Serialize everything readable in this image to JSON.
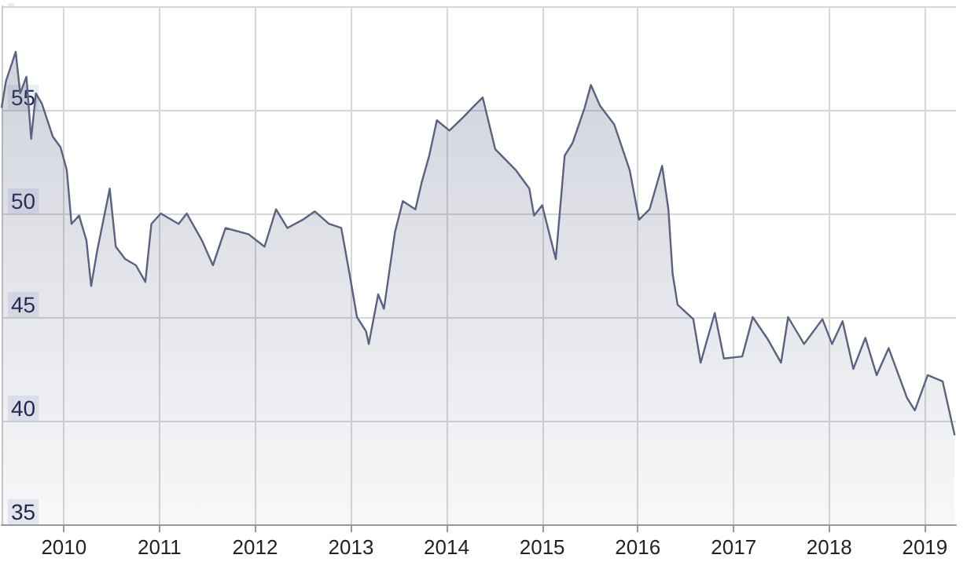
{
  "chart_data": {
    "type": "area",
    "x": [
      "2009-05-08",
      "2009-05-25",
      "2009-07-01",
      "2009-07-18",
      "2009-08-11",
      "2009-08-29",
      "2009-09-16",
      "2009-10-09",
      "2009-11-20",
      "2009-12-19",
      "2010-01-12",
      "2010-01-30",
      "2010-02-28",
      "2010-03-28",
      "2010-04-15",
      "2010-05-08",
      "2010-06-25",
      "2010-07-18",
      "2010-08-23",
      "2010-10-03",
      "2010-11-08",
      "2010-12-01",
      "2011-01-06",
      "2011-03-15",
      "2011-04-15",
      "2011-06-12",
      "2011-07-24",
      "2011-09-10",
      "2011-12-07",
      "2012-02-06",
      "2012-03-21",
      "2012-05-03",
      "2012-07-01",
      "2012-08-16",
      "2012-10-09",
      "2012-11-25",
      "2012-12-25",
      "2013-01-24",
      "2013-02-28",
      "2013-03-10",
      "2013-04-15",
      "2013-05-07",
      "2013-06-18",
      "2013-07-18",
      "2013-09-04",
      "2013-09-28",
      "2013-10-27",
      "2013-11-25",
      "2014-01-12",
      "2014-03-10",
      "2014-04-09",
      "2014-05-19",
      "2014-07-06",
      "2014-09-22",
      "2014-11-13",
      "2014-12-01",
      "2015-01-01",
      "2015-02-22",
      "2015-03-28",
      "2015-04-27",
      "2015-06-12",
      "2015-07-06",
      "2015-08-10",
      "2015-10-03",
      "2015-12-01",
      "2016-01-06",
      "2016-02-15",
      "2016-04-03",
      "2016-04-27",
      "2016-05-13",
      "2016-06-01",
      "2016-07-31",
      "2016-08-28",
      "2016-10-21",
      "2016-11-25",
      "2017-02-03",
      "2017-03-15",
      "2017-05-13",
      "2017-07-01",
      "2017-07-28",
      "2017-09-27",
      "2017-12-06",
      "2018-01-12",
      "2018-02-21",
      "2018-04-03",
      "2018-05-19",
      "2018-07-01",
      "2018-08-16",
      "2018-10-25",
      "2018-11-24",
      "2019-01-12",
      "2019-03-10",
      "2019-04-25"
    ],
    "series": [
      {
        "color": "#5a6282",
        "values": [
          55.1,
          56.4,
          57.8,
          55.8,
          56.6,
          53.6,
          55.8,
          55.3,
          53.7,
          53.2,
          52.1,
          49.5,
          49.9,
          48.7,
          46.5,
          48.2,
          51.2,
          48.4,
          47.8,
          47.5,
          46.7,
          49.5,
          50.0,
          49.5,
          50.0,
          48.7,
          47.5,
          49.3,
          49.0,
          48.4,
          50.2,
          49.3,
          49.7,
          50.1,
          49.5,
          49.3,
          47.2,
          45.0,
          44.3,
          43.7,
          46.1,
          45.4,
          49.1,
          50.6,
          50.2,
          51.5,
          52.8,
          54.5,
          54.0,
          54.7,
          55.1,
          55.6,
          53.1,
          52.1,
          51.2,
          49.9,
          50.4,
          47.8,
          52.8,
          53.4,
          55.1,
          56.2,
          55.2,
          54.3,
          52.1,
          49.7,
          50.2,
          52.3,
          50.2,
          47.1,
          45.6,
          44.9,
          42.8,
          45.2,
          43.0,
          43.1,
          45.0,
          43.9,
          42.8,
          45.0,
          43.7,
          44.9,
          43.7,
          44.8,
          42.5,
          44.0,
          42.2,
          43.5,
          41.1,
          40.5,
          42.2,
          41.9,
          39.3
        ]
      }
    ],
    "xlim": [
      "2009-05-08",
      "2019-04-30"
    ],
    "xticks": [
      {
        "value": "2010-01-01",
        "label": "2010"
      },
      {
        "value": "2011-01-01",
        "label": "2011"
      },
      {
        "value": "2012-01-01",
        "label": "2012"
      },
      {
        "value": "2013-01-01",
        "label": "2013"
      },
      {
        "value": "2014-01-01",
        "label": "2014"
      },
      {
        "value": "2015-01-01",
        "label": "2015"
      },
      {
        "value": "2016-01-01",
        "label": "2016"
      },
      {
        "value": "2017-01-01",
        "label": "2017"
      },
      {
        "value": "2018-01-01",
        "label": "2018"
      },
      {
        "value": "2019-01-01",
        "label": "2019"
      }
    ],
    "ylim": [
      35,
      60
    ],
    "yticks": [
      35,
      40,
      45,
      50,
      55,
      {
        "value": 60,
        "label": null
      }
    ],
    "grid": true
  }
}
